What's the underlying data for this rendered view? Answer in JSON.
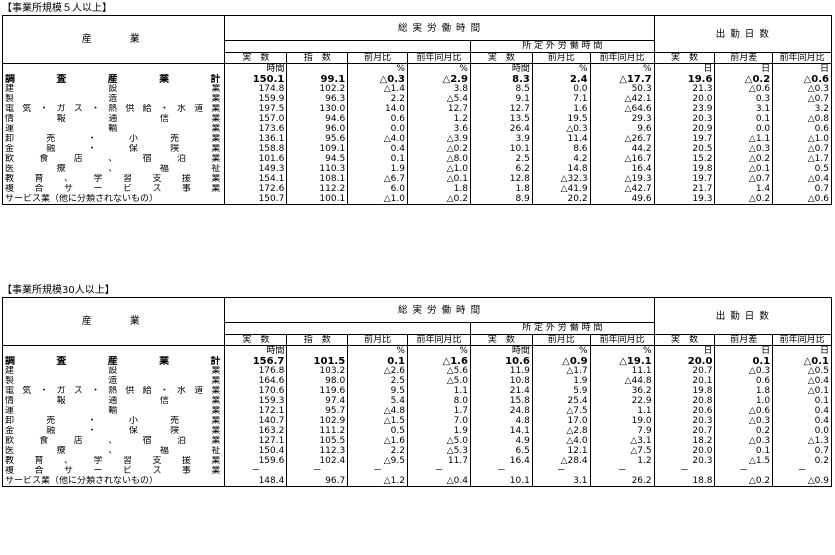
{
  "tables": [
    {
      "caption": "【事業所規模５人以上】",
      "industry_header": "産　　業",
      "hours_header": "総 実 労 働 時 間",
      "days_header": "出 勤 日 数",
      "overtime_header": "所 定 外 労 働 時 間",
      "col_labels": [
        "実　数",
        "指　数",
        "前月比",
        "前年同月比",
        "実　数",
        "前月比",
        "前年同月比",
        "実　数",
        "前月差",
        "前年同月比"
      ],
      "units": [
        "時間",
        "",
        "%",
        "%",
        "時間",
        "%",
        "%",
        "日",
        "日",
        "日"
      ],
      "rows": [
        {
          "name": "調　査　産　業　計",
          "vals": [
            "150.1",
            "99.1",
            "△0.3",
            "△2.9",
            "8.3",
            "2.4",
            "△17.7",
            "19.6",
            "△0.2",
            "△0.6"
          ]
        },
        {
          "name": "建設業",
          "vals": [
            "174.8",
            "102.2",
            "△1.4",
            "3.8",
            "8.5",
            "0.0",
            "50.3",
            "21.3",
            "△0.6",
            "△0.3"
          ]
        },
        {
          "name": "製造業",
          "vals": [
            "159.9",
            "96.3",
            "2.2",
            "△5.4",
            "9.1",
            "7.1",
            "△42.1",
            "20.0",
            "0.3",
            "△0.7"
          ]
        },
        {
          "name": "電気・ガス・熱供給・水道業",
          "vals": [
            "197.5",
            "130.0",
            "14.0",
            "12.7",
            "12.7",
            "1.6",
            "△64.6",
            "23.9",
            "3.1",
            "3.2"
          ]
        },
        {
          "name": "情報通信業",
          "vals": [
            "157.0",
            "94.6",
            "0.6",
            "1.2",
            "13.5",
            "19.5",
            "29.3",
            "20.3",
            "0.1",
            "△0.8"
          ]
        },
        {
          "name": "運輸業",
          "vals": [
            "173.6",
            "96.0",
            "0.0",
            "3.6",
            "26.4",
            "△0.3",
            "9.6",
            "20.9",
            "0.0",
            "0.6"
          ]
        },
        {
          "name": "卸売・小売業",
          "vals": [
            "136.1",
            "95.6",
            "△4.0",
            "△3.9",
            "3.9",
            "11.4",
            "△26.7",
            "19.7",
            "△1.1",
            "△1.0"
          ]
        },
        {
          "name": "金融・保険業",
          "vals": [
            "158.8",
            "109.1",
            "0.4",
            "△0.2",
            "10.1",
            "8.6",
            "44.2",
            "20.5",
            "△0.3",
            "△0.7"
          ]
        },
        {
          "name": "飲食店、宿泊業",
          "vals": [
            "101.6",
            "94.5",
            "0.1",
            "△8.0",
            "2.5",
            "4.2",
            "△16.7",
            "15.2",
            "△0.2",
            "△1.7"
          ]
        },
        {
          "name": "医療、福祉",
          "vals": [
            "149.3",
            "110.3",
            "1.9",
            "△1.0",
            "6.2",
            "14.8",
            "16.4",
            "19.8",
            "△0.1",
            "0.5"
          ]
        },
        {
          "name": "教育、学習支援業",
          "vals": [
            "154.1",
            "108.1",
            "△6.7",
            "△0.1",
            "12.8",
            "△32.3",
            "△19.3",
            "19.7",
            "△0.7",
            "△0.4"
          ]
        },
        {
          "name": "複合サービス事業",
          "vals": [
            "172.6",
            "112.2",
            "6.0",
            "1.8",
            "1.8",
            "△41.9",
            "△42.7",
            "21.7",
            "1.4",
            "0.7"
          ]
        },
        {
          "name": "サービス業（他に分類されないもの）",
          "vals": [
            "150.7",
            "100.1",
            "△1.0",
            "△0.2",
            "8.9",
            "20.2",
            "49.6",
            "19.3",
            "△0.2",
            "△0.6"
          ]
        }
      ]
    },
    {
      "caption": "【事業所規模30人以上】",
      "industry_header": "産　　業",
      "hours_header": "総 実 労 働 時 間",
      "days_header": "出 勤 日 数",
      "overtime_header": "所 定 外 労 働 時 間",
      "col_labels": [
        "実　数",
        "指　数",
        "前月比",
        "前年同月比",
        "実　数",
        "前月比",
        "前年同月比",
        "実　数",
        "前月差",
        "前年同月比"
      ],
      "units": [
        "時間",
        "",
        "%",
        "%",
        "時間",
        "%",
        "%",
        "日",
        "日",
        "日"
      ],
      "rows": [
        {
          "name": "調　査　産　業　計",
          "vals": [
            "156.7",
            "101.5",
            "0.1",
            "△1.6",
            "10.6",
            "△0.9",
            "△19.1",
            "20.0",
            "0.1",
            "△0.1"
          ]
        },
        {
          "name": "建設業",
          "vals": [
            "176.8",
            "103.2",
            "△2.6",
            "△5.6",
            "11.9",
            "△1.7",
            "11.1",
            "20.7",
            "△0.3",
            "△0.5"
          ]
        },
        {
          "name": "製造業",
          "vals": [
            "164.6",
            "98.0",
            "2.5",
            "△5.0",
            "10.8",
            "1.9",
            "△44.8",
            "20.1",
            "0.6",
            "△0.4"
          ]
        },
        {
          "name": "電気・ガス・熱供給・水道業",
          "vals": [
            "170.6",
            "119.6",
            "9.5",
            "1.1",
            "21.4",
            "5.9",
            "36.2",
            "19.8",
            "1.8",
            "△0.1"
          ]
        },
        {
          "name": "情報通信業",
          "vals": [
            "159.3",
            "97.4",
            "5.4",
            "8.0",
            "15.8",
            "25.4",
            "22.9",
            "20.8",
            "1.0",
            "0.1"
          ]
        },
        {
          "name": "運輸業",
          "vals": [
            "172.1",
            "95.7",
            "△4.8",
            "1.7",
            "24.8",
            "△7.5",
            "1.1",
            "20.6",
            "△0.6",
            "0.4"
          ]
        },
        {
          "name": "卸売・小売業",
          "vals": [
            "140.7",
            "102.9",
            "△1.5",
            "7.0",
            "4.8",
            "17.0",
            "19.0",
            "20.3",
            "△0.3",
            "0.4"
          ]
        },
        {
          "name": "金融・保険業",
          "vals": [
            "163.2",
            "111.2",
            "0.5",
            "1.9",
            "14.1",
            "△2.8",
            "7.9",
            "20.7",
            "0.2",
            "0.0"
          ]
        },
        {
          "name": "飲食店、宿泊業",
          "vals": [
            "127.1",
            "105.5",
            "△1.6",
            "△5.0",
            "4.9",
            "△4.0",
            "△3.1",
            "18.2",
            "△0.3",
            "△1.3"
          ]
        },
        {
          "name": "医療、福祉",
          "vals": [
            "150.4",
            "112.3",
            "2.2",
            "△5.3",
            "6.5",
            "12.1",
            "△7.5",
            "20.0",
            "0.1",
            "0.7"
          ]
        },
        {
          "name": "教育、学習支援業",
          "vals": [
            "159.6",
            "102.4",
            "△9.5",
            "11.7",
            "16.4",
            "△28.4",
            "1.2",
            "20.3",
            "△1.5",
            "0.2"
          ]
        },
        {
          "name": "複合サービス事業",
          "vals": [
            "－",
            "－",
            "－",
            "－",
            "－",
            "－",
            "－",
            "－",
            "－",
            "－"
          ]
        },
        {
          "name": "サービス業（他に分類されないもの）",
          "vals": [
            "148.4",
            "96.7",
            "△1.2",
            "△0.4",
            "10.1",
            "3.1",
            "26.2",
            "18.8",
            "△0.2",
            "△0.9"
          ]
        }
      ]
    }
  ]
}
